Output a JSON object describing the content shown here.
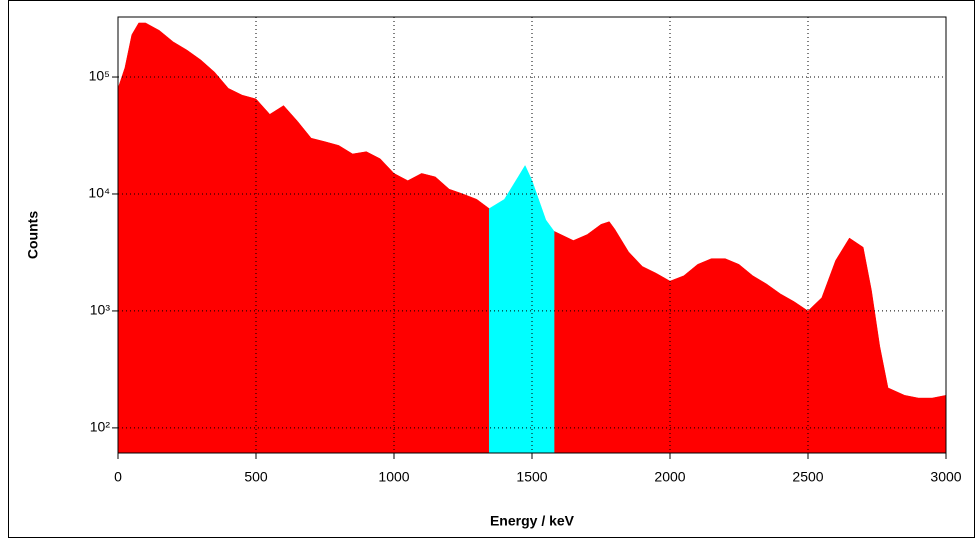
{
  "chart_data": {
    "type": "area",
    "xlabel": "Energy / keV",
    "ylabel": "Counts",
    "x": [
      0,
      25,
      50,
      75,
      100,
      150,
      200,
      250,
      300,
      350,
      400,
      450,
      500,
      550,
      600,
      650,
      700,
      750,
      800,
      850,
      900,
      950,
      1000,
      1050,
      1100,
      1150,
      1200,
      1250,
      1300,
      1345,
      1400,
      1450,
      1475,
      1500,
      1550,
      1580,
      1650,
      1700,
      1750,
      1780,
      1800,
      1850,
      1900,
      1950,
      2000,
      2050,
      2100,
      2150,
      2200,
      2250,
      2300,
      2350,
      2400,
      2450,
      2500,
      2550,
      2600,
      2650,
      2700,
      2730,
      2760,
      2790,
      2850,
      2900,
      2950,
      3000
    ],
    "series": [
      {
        "color": "#ff0000",
        "values": [
          80000,
          120000,
          230000,
          290000,
          290000,
          250000,
          200000,
          170000,
          140000,
          110000,
          80000,
          70000,
          65000,
          48000,
          57000,
          42000,
          30000,
          28000,
          26000,
          22000,
          23000,
          20000,
          15000,
          13000,
          15000,
          14000,
          11000,
          10000,
          9000,
          7500,
          null,
          null,
          null,
          null,
          null,
          4800,
          4000,
          4500,
          5500,
          5800,
          5000,
          3200,
          2400,
          2100,
          1800,
          2000,
          2500,
          2800,
          2800,
          2500,
          2000,
          1700,
          1400,
          1200,
          1000,
          1300,
          2700,
          4200,
          3500,
          1500,
          500,
          220,
          190,
          180,
          180,
          190
        ]
      },
      {
        "color": "#00ffff",
        "values": [
          null,
          null,
          null,
          null,
          null,
          null,
          null,
          null,
          null,
          null,
          null,
          null,
          null,
          null,
          null,
          null,
          null,
          null,
          null,
          null,
          null,
          null,
          null,
          null,
          null,
          null,
          null,
          null,
          null,
          7500,
          9000,
          14000,
          17500,
          13000,
          6000,
          4800,
          null,
          null,
          null,
          null,
          null,
          null,
          null,
          null,
          null,
          null,
          null,
          null,
          null,
          null,
          null,
          null,
          null,
          null,
          null,
          null,
          null,
          null,
          null,
          null,
          null,
          null,
          null,
          null,
          null,
          null
        ]
      }
    ],
    "xlim": [
      0,
      3000
    ],
    "xticks": [
      0,
      500,
      1000,
      1500,
      2000,
      2500,
      3000
    ],
    "ylim": [
      61,
      326000
    ],
    "ylog": true,
    "yticks": [
      {
        "value": 100,
        "label": "10²"
      },
      {
        "value": 1000,
        "label": "10³"
      },
      {
        "value": 10000,
        "label": "10⁴"
      },
      {
        "value": 100000,
        "label": "10⁵"
      }
    ],
    "grid": true
  }
}
